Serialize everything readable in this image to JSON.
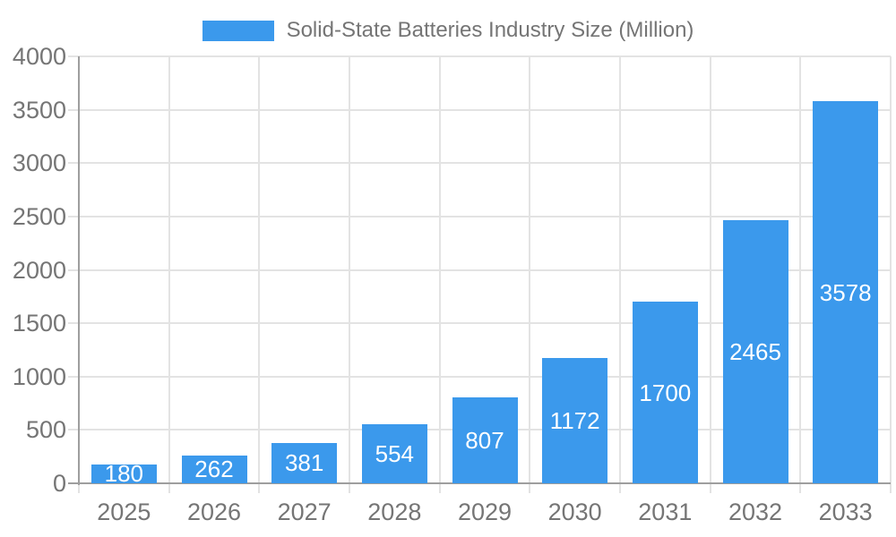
{
  "chart_data": {
    "type": "bar",
    "title": "Solid-State Batteries Industry Size (Million)",
    "categories": [
      "2025",
      "2026",
      "2027",
      "2028",
      "2029",
      "2030",
      "2031",
      "2032",
      "2033"
    ],
    "values": [
      180,
      262,
      381,
      554,
      807,
      1172,
      1700,
      2465,
      3578
    ],
    "value_labels": [
      "180",
      "262",
      "381",
      "554",
      "807",
      "1172",
      "1700",
      "2465",
      "3578"
    ],
    "xlabel": "",
    "ylabel": "",
    "ylim": [
      0,
      4000
    ],
    "yticks": [
      0,
      500,
      1000,
      1500,
      2000,
      2500,
      3000,
      3500,
      4000
    ],
    "ytick_labels": [
      "0",
      "500",
      "1000",
      "1500",
      "2000",
      "2500",
      "3000",
      "3500",
      "4000"
    ],
    "grid": true,
    "legend_position": "top",
    "colors": {
      "bar": "#3B99EC",
      "value_label": "#FFFFFF",
      "axis_label": "#757575",
      "grid": "#E3E3E3",
      "axis_line": "#9E9E9E",
      "background": "#FFFFFF"
    }
  }
}
